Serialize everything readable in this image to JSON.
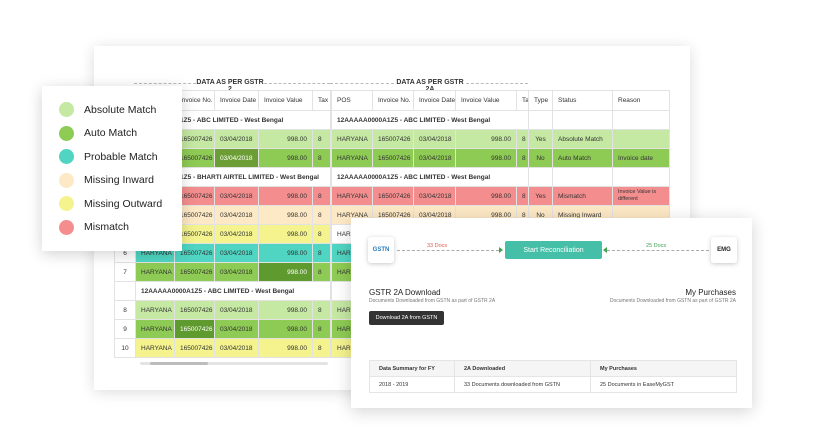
{
  "legend": [
    {
      "label": "Absolute Match",
      "color": "#c5e8a3"
    },
    {
      "label": "Auto Match",
      "color": "#8ecb54"
    },
    {
      "label": "Probable Match",
      "color": "#4fd5c2"
    },
    {
      "label": "Missing Inward",
      "color": "#fde9c5"
    },
    {
      "label": "Missing Outward",
      "color": "#f4f38e"
    },
    {
      "label": "Mismatch",
      "color": "#f48e8e"
    }
  ],
  "sections": {
    "gstr2": "DATA AS PER GSTR 2",
    "gstr2a": "DATA AS PER GSTR 2A"
  },
  "left_table": {
    "headers": [
      "Invoice No.",
      "Invoice Date",
      "Invoice Value",
      "Tax"
    ],
    "group1": "1Z5 - ABC LIMITED - West Bengal",
    "row1": [
      "165007426",
      "03/04/2018",
      "998.00",
      "8"
    ],
    "row2": [
      "165007426",
      "03/04/2018",
      "998.00",
      "8"
    ],
    "group2": "1Z5 - BHARTI AIRTEL LIMITED - West Bengal",
    "row3": [
      "165007426",
      "03/04/2018",
      "998.00",
      "8"
    ],
    "row4": [
      "165007426",
      "03/04/2018",
      "998.00",
      "8"
    ],
    "row5": [
      "165007426",
      "03/04/2018",
      "998.00",
      "8"
    ],
    "row6": [
      "6",
      "HARYANA",
      "165007426",
      "03/04/2018",
      "998.00",
      "8"
    ],
    "row7": [
      "7",
      "HARYANA",
      "165007426",
      "03/04/2018",
      "998.00",
      "8"
    ],
    "group3": "12AAAAA0000A1Z5 - ABC LIMITED - West Bengal",
    "row8": [
      "8",
      "HARYANA",
      "165007426",
      "03/04/2018",
      "998.00",
      "8"
    ],
    "row9": [
      "9",
      "HARYANA",
      "165007426",
      "03/04/2018",
      "998.00",
      "8"
    ],
    "row10": [
      "10",
      "HARYANA",
      "165007426",
      "03/04/2018",
      "998.00",
      "8"
    ]
  },
  "right_table": {
    "headers": [
      "POS",
      "Invoice No.",
      "Invoice Date",
      "Invoice Value",
      "Ta"
    ],
    "group1": "12AAAAA0000A1Z5 - ABC LIMITED - West Bengal",
    "row1": [
      "HARYANA",
      "165007426",
      "03/04/2018",
      "998.00",
      "8"
    ],
    "row2": [
      "HARYANA",
      "165007426",
      "03/04/2018",
      "998.00",
      "8"
    ],
    "group2": "12AAAAA0000A1Z5 - ABC LIMITED - West Bengal",
    "row3": [
      "HARYANA",
      "165007426",
      "03/04/2018",
      "998.00",
      "8"
    ],
    "row4": [
      "HARYANA",
      "165007426",
      "03/04/2018",
      "998.00",
      "8"
    ],
    "row5": [
      "HAR"
    ],
    "row6": [
      "HAR"
    ],
    "row7": [
      "HAR"
    ],
    "row8": [
      "HAR"
    ],
    "row9": [
      "HAR"
    ],
    "row10": [
      "HAR"
    ]
  },
  "status_table": {
    "headers": [
      "Type",
      "Status",
      "Reason"
    ],
    "row1": [
      "Yes",
      "Absolute Match",
      ""
    ],
    "row2": [
      "No",
      "Auto Match",
      "Invoice date"
    ],
    "row3": [
      "Yes",
      "Mismatch",
      "Invoice Value is different"
    ],
    "row4": [
      "No",
      "Missing Inward",
      ""
    ]
  },
  "recon": {
    "left_logo": "GSTN",
    "right_logo": "EMG",
    "left_count": "33 Docs",
    "right_count": "25 Docs",
    "start_button": "Start Reconciliation",
    "gstr_title": "GSTR 2A Download",
    "gstr_note": "Documents Downloaded from GSTN as part of GSTR 2A",
    "purchases_title": "My Purchases",
    "purchases_note": "Documents Downloaded from GSTN as part of GSTR 2A",
    "download_button": "Download 2A from GSTN",
    "summary_headers": [
      "Data Summary for FY",
      "2A Downloaded",
      "My Purchases"
    ],
    "summary_row": [
      "2018 - 2019",
      "33 Documents downloaded from GSTN",
      "25 Documents in EaseMyGST"
    ]
  }
}
